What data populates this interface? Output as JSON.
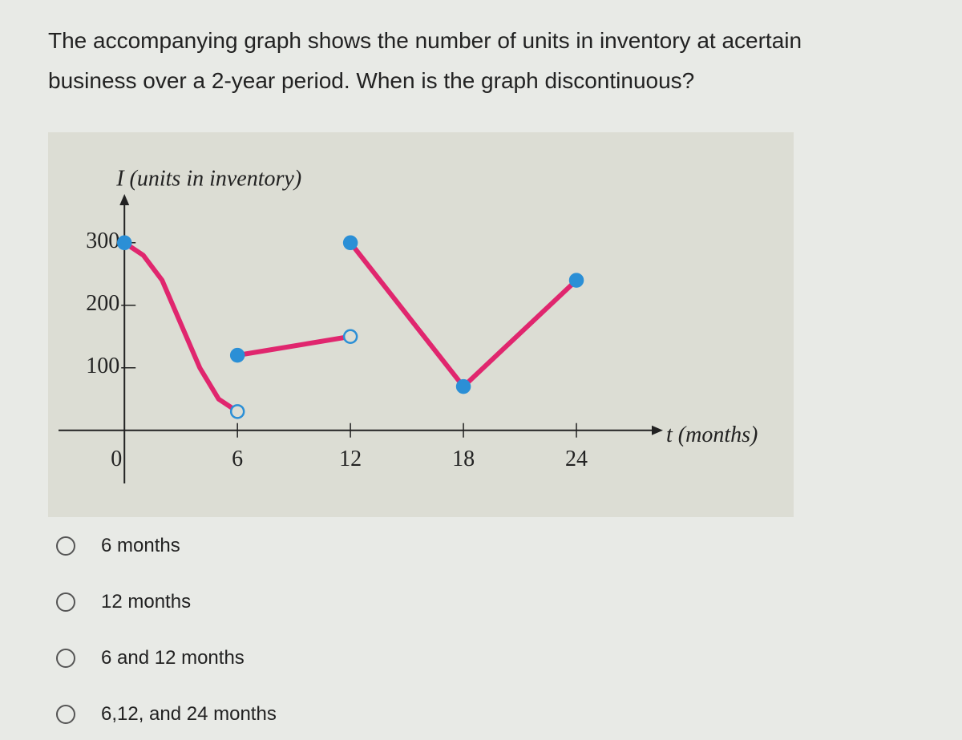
{
  "question": "The accompanying graph shows the number of units in inventory at acertain business over a 2-year period. When is the graph discontinuous?",
  "chart_data": {
    "type": "line",
    "y_label": "I (units in inventory)",
    "x_label": "t (months)",
    "xlim": [
      -3.5,
      28
    ],
    "ylim": [
      -85,
      360
    ],
    "xticks": [
      0,
      6,
      12,
      18,
      24
    ],
    "yticks": [
      100,
      200,
      300
    ],
    "line_color": "#e0266e",
    "marker_color": "#2b8fd6",
    "series": [
      {
        "x": [
          0,
          1,
          2,
          3,
          4,
          5,
          6
        ],
        "values": [
          300,
          280,
          240,
          170,
          100,
          50,
          30
        ],
        "markers": [
          "filled",
          null,
          null,
          null,
          null,
          null,
          "open"
        ]
      },
      {
        "x": [
          6,
          12
        ],
        "values": [
          120,
          150
        ],
        "markers": [
          "filled",
          "open"
        ]
      },
      {
        "x": [
          12,
          18,
          24
        ],
        "values": [
          300,
          70,
          240
        ],
        "markers": [
          "filled",
          "filled",
          "filled"
        ]
      }
    ]
  },
  "options": [
    "6 months",
    "12 months",
    "6 and 12 months",
    "6,12, and 24 months"
  ]
}
